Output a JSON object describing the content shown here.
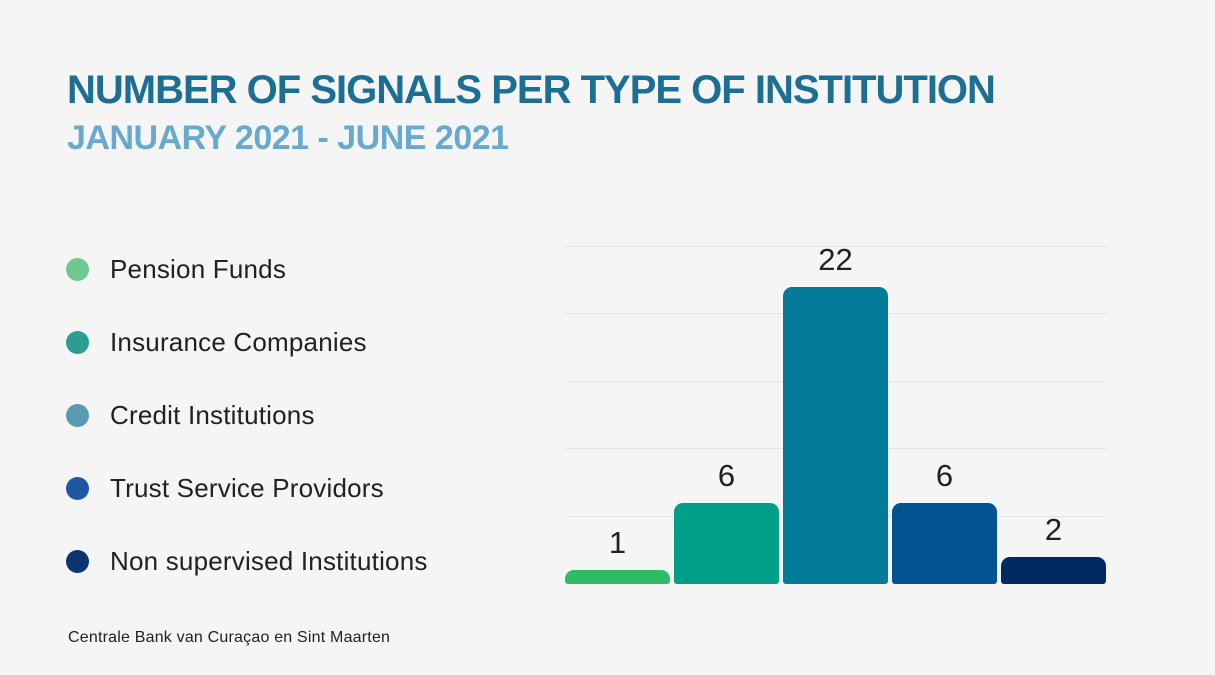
{
  "page": {
    "title": "NUMBER OF SIGNALS PER TYPE OF INSTITUTION",
    "subtitle": "JANUARY 2021 - JUNE 2021",
    "footer": "Centrale Bank van Curaçao en Sint Maarten",
    "background_color": "#f5f5f6",
    "title_color": "#1c6f93",
    "subtitle_color": "#68a9cd"
  },
  "legend": {
    "items": [
      {
        "label": "Pension Funds",
        "color": "#6fc98f"
      },
      {
        "label": "Insurance Companies",
        "color": "#2a9e90"
      },
      {
        "label": "Credit Institutions",
        "color": "#5b9ab5"
      },
      {
        "label": "Trust Service Providors",
        "color": "#1f57a5"
      },
      {
        "label": "Non supervised Institutions",
        "color": "#0b3470"
      }
    ]
  },
  "chart_data": {
    "type": "bar",
    "title": "NUMBER OF SIGNALS PER TYPE OF INSTITUTION",
    "subtitle": "JANUARY 2021 - JUNE 2021",
    "categories": [
      "Pension Funds",
      "Insurance Companies",
      "Credit Institutions",
      "Trust Service Providors",
      "Non supervised Institutions"
    ],
    "values": [
      1,
      6,
      22,
      6,
      2
    ],
    "data_labels": [
      "1",
      "6",
      "22",
      "6",
      "2"
    ],
    "bar_colors": [
      "#2fbc66",
      "#019e88",
      "#047b99",
      "#045391",
      "#032963"
    ],
    "xlabel": "",
    "ylabel": "",
    "ylim": [
      0,
      25
    ],
    "gridline_step": 5,
    "grid": true,
    "gridline_color": "#e4e4e6",
    "legend_position": "left",
    "source": "Centrale Bank van Curaçao en Sint Maarten"
  }
}
